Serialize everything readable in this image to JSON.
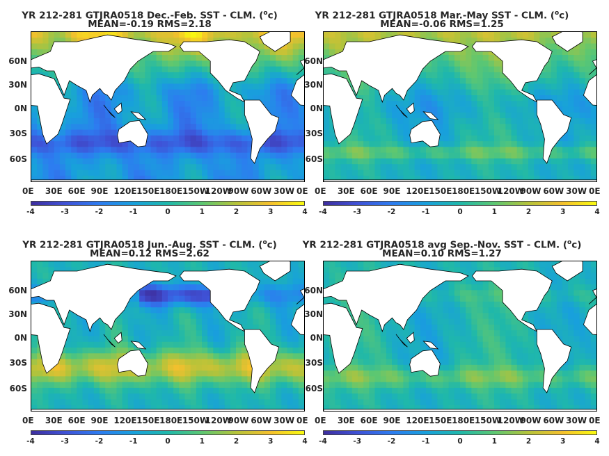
{
  "panels": [
    {
      "title_line1_pre": "YR 212-281 GTJRA0518  Dec.-Feb. SST - CLM. (",
      "title_line1_post": "c)",
      "title_line2": "MEAN=-0.19   RMS=2.18",
      "season": "DJF"
    },
    {
      "title_line1_pre": "YR 212-281 GTJRA0518 Mar.-May SST - CLM. (",
      "title_line1_post": "c)",
      "title_line2": "MEAN=-0.06   RMS=1.25",
      "season": "MAM"
    },
    {
      "title_line1_pre": "YR 212-281 GTJRA0518 Jun.-Aug. SST - CLM. (",
      "title_line1_post": "c)",
      "title_line2": "MEAN=0.12   RMS=2.62",
      "season": "JJA"
    },
    {
      "title_line1_pre": "YR 212-281 GTJRA0518 avg Sep.-Nov. SST - CLM. (",
      "title_line1_post": "c)",
      "title_line2": "MEAN=0.10   RMS=1.27",
      "season": "SON"
    }
  ],
  "degree_symbol": "o",
  "lat_labels": [
    "60N",
    "30N",
    "0N",
    "30S",
    "60S"
  ],
  "lon_labels": [
    "0E",
    "30E",
    "60E",
    "90E",
    "120E",
    "150E",
    "180E",
    "150W",
    "120W",
    "90W",
    "60W",
    "30W",
    "0E"
  ],
  "colorbar": {
    "ticks": [
      "-4",
      "-3",
      "-2",
      "-1",
      "0",
      "1",
      "2",
      "3",
      "4"
    ],
    "range": [
      -4,
      4
    ],
    "colors": [
      "#3e2e9e",
      "#3f52d6",
      "#2d7cf0",
      "#18a0dc",
      "#1fb8aa",
      "#5cc772",
      "#b5c33a",
      "#f5c02d",
      "#f8fa10"
    ]
  }
}
